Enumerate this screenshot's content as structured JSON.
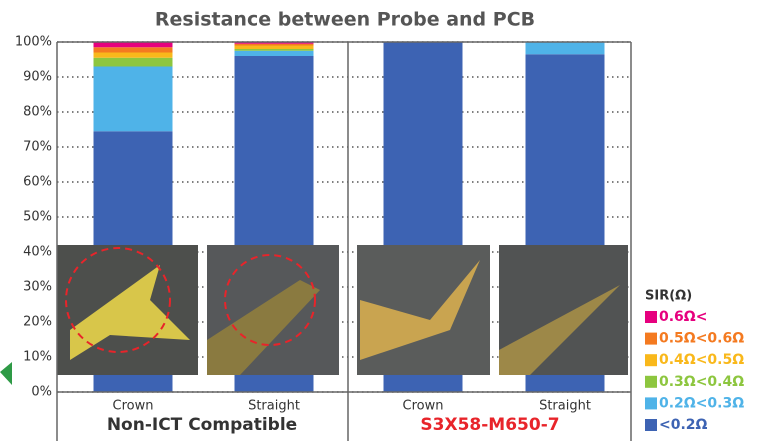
{
  "chart_data": {
    "type": "stacked_bar",
    "title": "Resistance between Probe and PCB",
    "categories": [
      "Crown",
      "Straight",
      "Crown",
      "Straight"
    ],
    "groups": [
      {
        "label": "Non-ICT Compatible",
        "color": "#333333"
      },
      {
        "label": "S3X58-M650-7",
        "color": "#e8242a"
      }
    ],
    "legend_title": "SIR(Ω)",
    "series": [
      {
        "name": "<0.2Ω",
        "color": "#3d63b3",
        "values": [
          74.5,
          96,
          100,
          96.5
        ]
      },
      {
        "name": "0.2Ω<0.3Ω",
        "color": "#4fb3e8",
        "values": [
          18.5,
          1.5,
          0,
          3.5
        ]
      },
      {
        "name": "0.3Ω<0.4Ω",
        "color": "#8dc63f",
        "values": [
          2.5,
          0.5,
          0,
          0
        ]
      },
      {
        "name": "0.4Ω<0.5Ω",
        "color": "#f9b81b",
        "values": [
          1.5,
          1,
          0,
          0
        ]
      },
      {
        "name": "0.5Ω<0.6Ω",
        "color": "#f47a20",
        "values": [
          1.5,
          0.5,
          0,
          0
        ]
      },
      {
        "name": "0.6Ω<",
        "color": "#e6007e",
        "values": [
          1.5,
          0.5,
          0,
          0
        ]
      }
    ],
    "ylim": [
      0,
      100
    ],
    "yticks": [
      {
        "value": 0,
        "label": "0%"
      },
      {
        "value": 10,
        "label": "10%"
      },
      {
        "value": 20,
        "label": "20%"
      },
      {
        "value": 30,
        "label": "30%"
      },
      {
        "value": 40,
        "label": "40%"
      },
      {
        "value": 50,
        "label": "50%"
      },
      {
        "value": 60,
        "label": "60%"
      },
      {
        "value": 70,
        "label": "70%"
      },
      {
        "value": 80,
        "label": "80%"
      },
      {
        "value": 90,
        "label": "90%"
      },
      {
        "value": 100,
        "label": "100%"
      }
    ],
    "grid": true
  }
}
